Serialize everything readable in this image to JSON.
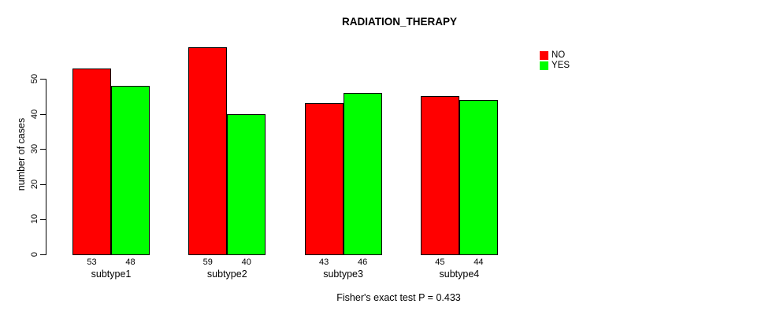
{
  "chart_data": {
    "type": "bar",
    "title": "RADIATION_THERAPY",
    "ylabel": "number of cases",
    "xlabel": "",
    "categories": [
      "subtype1",
      "subtype2",
      "subtype3",
      "subtype4"
    ],
    "series": [
      {
        "name": "NO",
        "color": "#FF0000",
        "values": [
          53,
          59,
          43,
          45
        ]
      },
      {
        "name": "YES",
        "color": "#00FF00",
        "values": [
          48,
          40,
          46,
          44
        ]
      }
    ],
    "ylim": [
      0,
      50
    ],
    "yticks": [
      0,
      10,
      20,
      30,
      40,
      50
    ],
    "bar_value_labels": true,
    "grid": false,
    "legend_position": "top-right",
    "annotation": "Fisher's exact test P = 0.433"
  }
}
